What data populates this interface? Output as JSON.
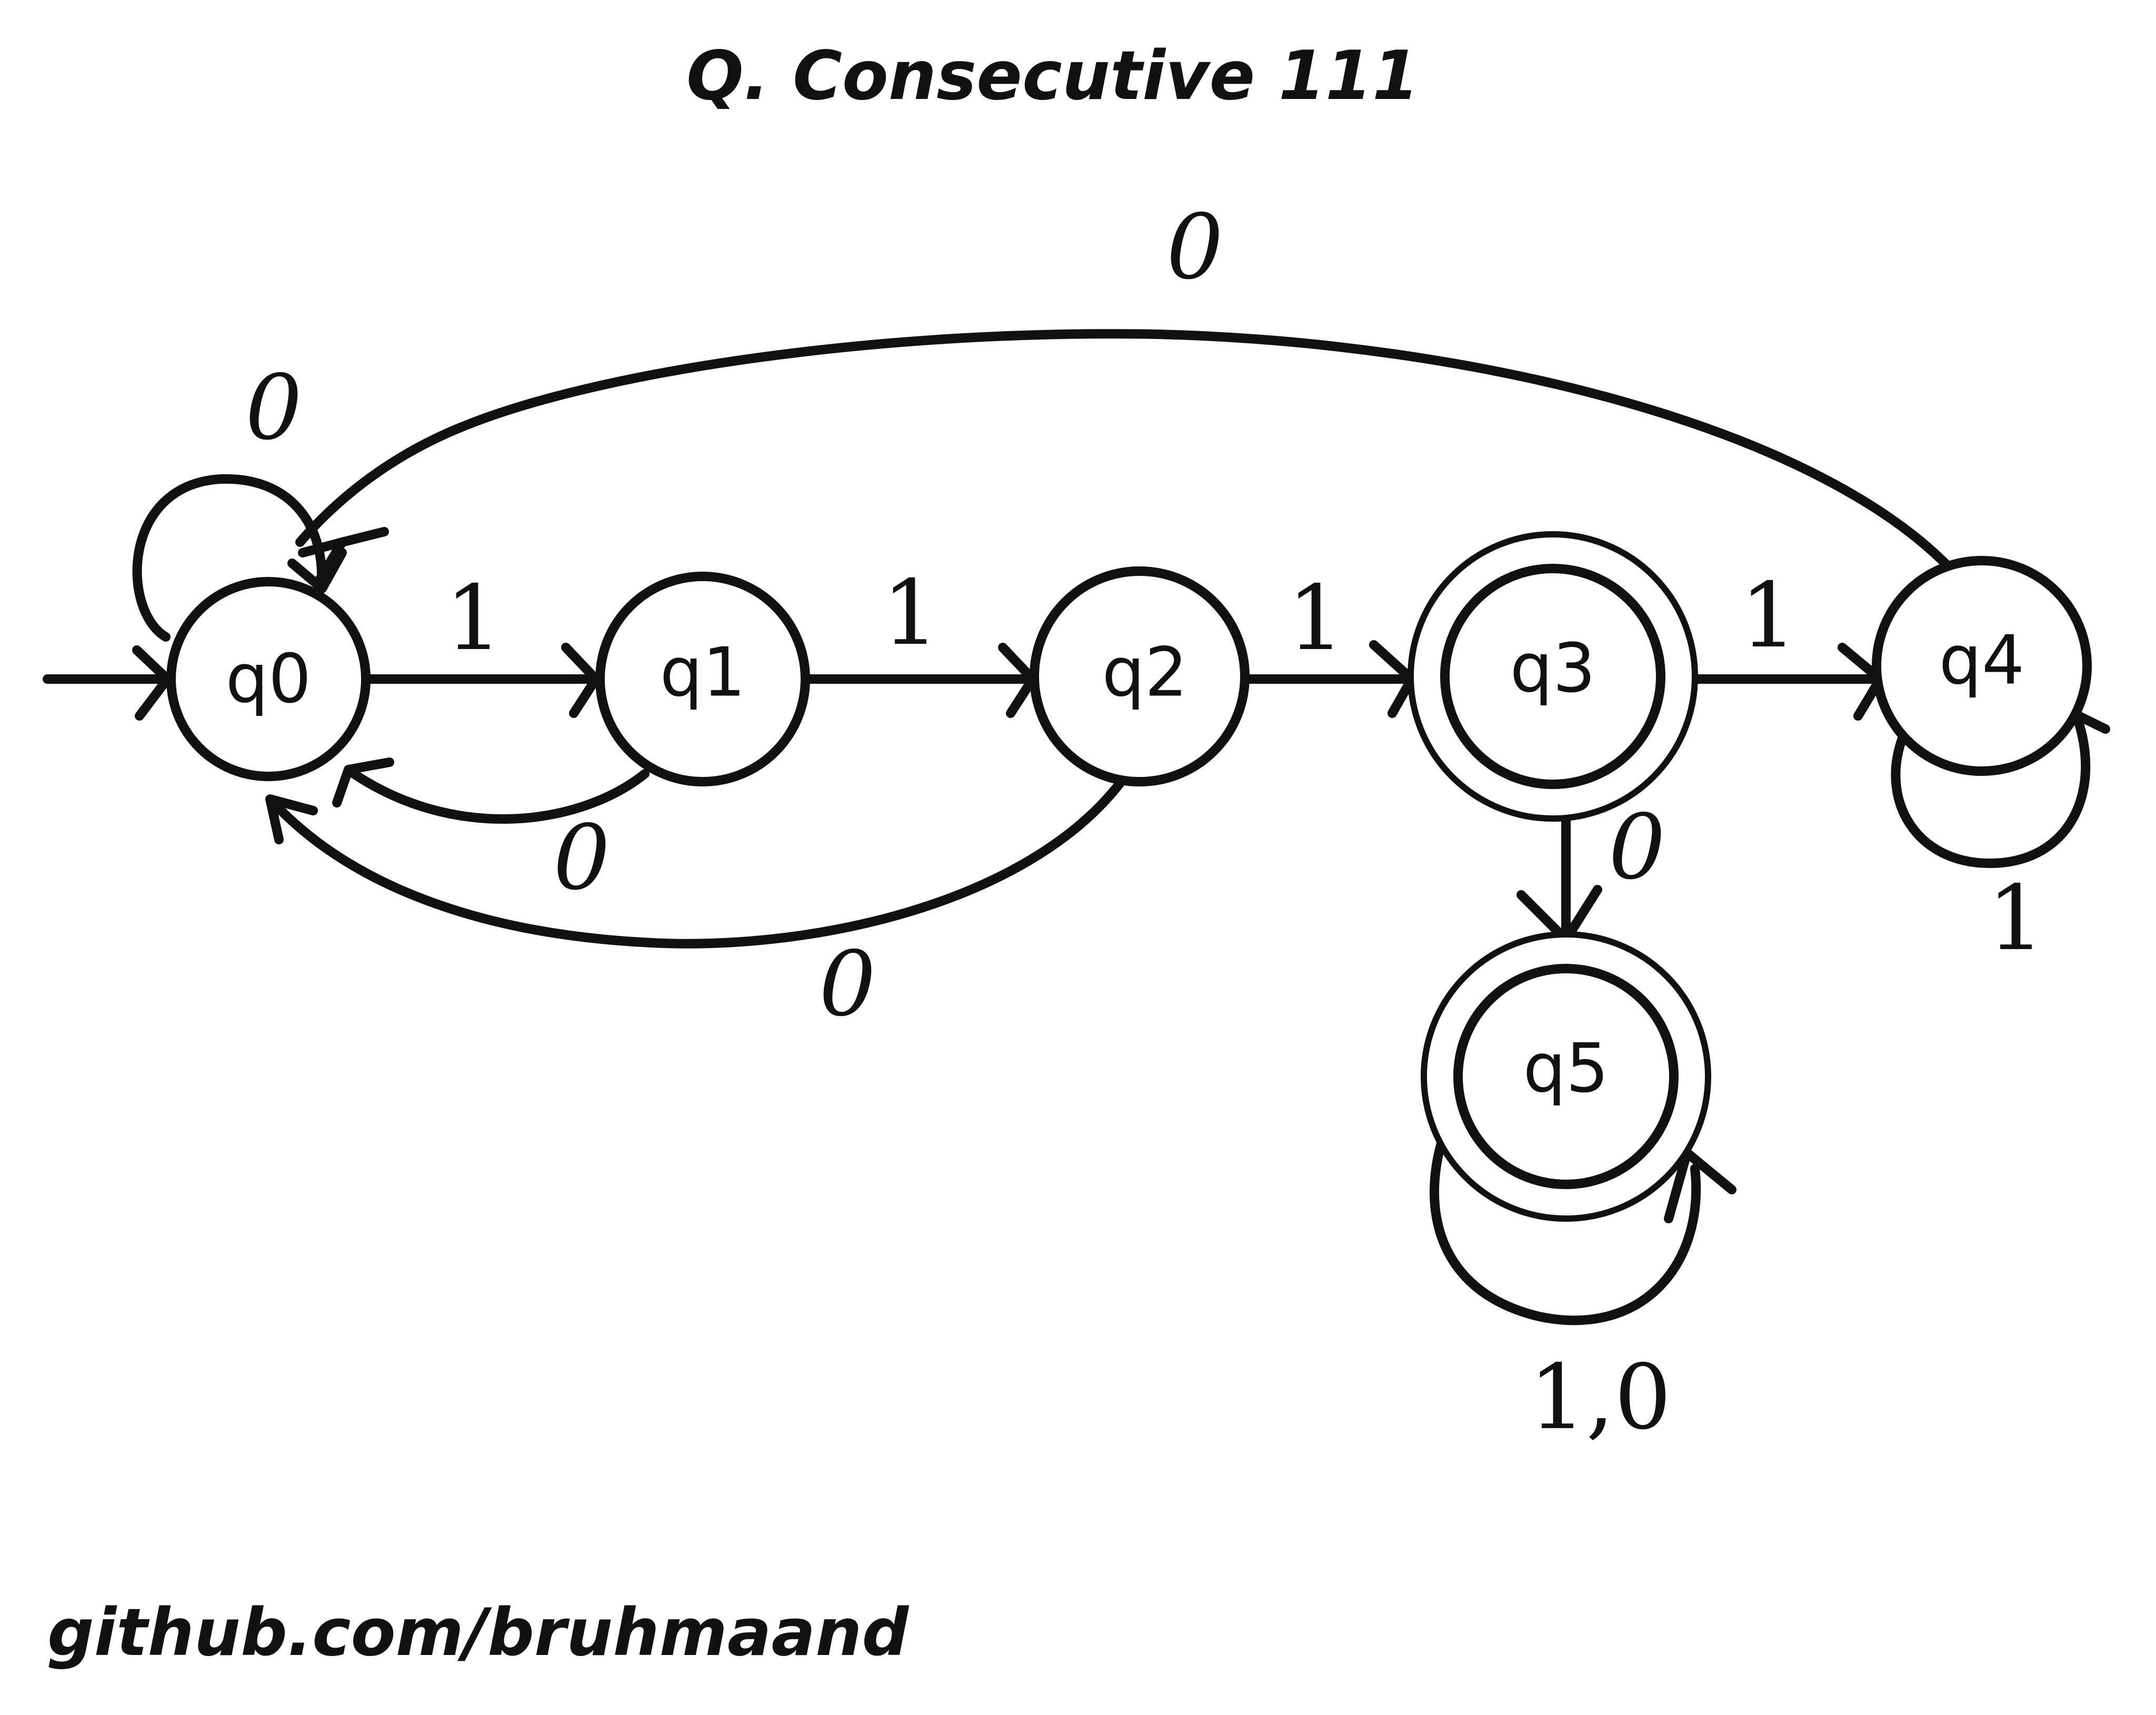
{
  "title": "Q. Consecutive 111",
  "footer": "github.com/bruhmaand",
  "states": {
    "q0": "q0",
    "q1": "q1",
    "q2": "q2",
    "q3": "q3",
    "q4": "q4",
    "q5": "q5"
  },
  "accepting_states": [
    "q3",
    "q5"
  ],
  "start_state": "q0",
  "transitions": [
    {
      "from": "q0",
      "to": "q0",
      "label": "0"
    },
    {
      "from": "q0",
      "to": "q1",
      "label": "1"
    },
    {
      "from": "q1",
      "to": "q0",
      "label": "0"
    },
    {
      "from": "q1",
      "to": "q2",
      "label": "1"
    },
    {
      "from": "q2",
      "to": "q0",
      "label": "0"
    },
    {
      "from": "q2",
      "to": "q3",
      "label": "1"
    },
    {
      "from": "q3",
      "to": "q4",
      "label": "1"
    },
    {
      "from": "q3",
      "to": "q5",
      "label": "0"
    },
    {
      "from": "q4",
      "to": "q4",
      "label": "1"
    },
    {
      "from": "q4",
      "to": "q0",
      "label": "0"
    },
    {
      "from": "q5",
      "to": "q5",
      "label": "1,0"
    }
  ],
  "labels": {
    "q0_self": "0",
    "q0_q1": "1",
    "q1_q0": "0",
    "q1_q2": "1",
    "q2_q0": "0",
    "q2_q3": "1",
    "q3_q4": "1",
    "q3_q5": "0",
    "q4_self": "1",
    "q4_q0": "0",
    "q5_self": "1,0"
  }
}
